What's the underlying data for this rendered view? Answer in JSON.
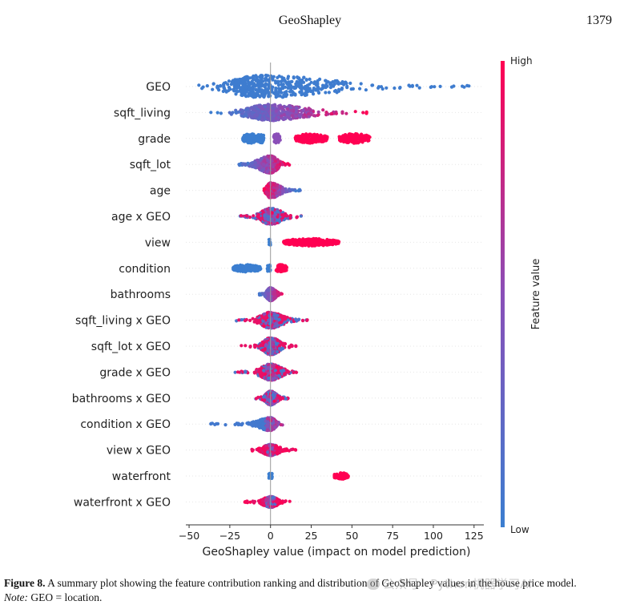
{
  "header": {
    "running_title": "GeoShapley",
    "page_number": "1379"
  },
  "chart_data": {
    "type": "scatter",
    "subtype": "beeswarm-summary",
    "xlabel": "GeoShapley value (impact on model prediction)",
    "xlim": [
      -52,
      131
    ],
    "xticks": [
      -50,
      -25,
      0,
      25,
      50,
      75,
      100,
      125
    ],
    "colorbar": {
      "label": "Feature value",
      "high_label": "High",
      "low_label": "Low",
      "low_color": "#3b7ed0",
      "high_color": "#ff0052"
    },
    "grid": false,
    "features": [
      {
        "name": "GEO",
        "min": -44,
        "max": 123,
        "center": -5,
        "left_spread": 28,
        "right_spread": 60,
        "width": 1.0,
        "color_mode": "blue"
      },
      {
        "name": "sqft_living",
        "min": -37,
        "max": 60,
        "center": 0,
        "left_spread": 20,
        "right_spread": 30,
        "width": 0.7,
        "color_mode": "gradient"
      },
      {
        "name": "grade",
        "clusters": [
          [
            -17,
            -8,
            "blue"
          ],
          [
            -8,
            -4,
            "blue"
          ],
          [
            2,
            6,
            "purple"
          ],
          [
            15,
            35,
            "red"
          ],
          [
            42,
            61,
            "red"
          ]
        ],
        "width": 0.45
      },
      {
        "name": "sqft_lot",
        "min": -20,
        "max": 12,
        "center": 0,
        "left_spread": 10,
        "right_spread": 6,
        "width": 0.75,
        "color_mode": "gradient"
      },
      {
        "name": "age",
        "min": -5,
        "max": 19,
        "center": 0,
        "left_spread": 3,
        "right_spread": 8,
        "width": 0.65,
        "color_mode": "gradient-rev"
      },
      {
        "name": "age x GEO",
        "min": -20,
        "max": 19,
        "center": 0,
        "left_spread": 8,
        "right_spread": 10,
        "width": 0.7,
        "color_mode": "mixed"
      },
      {
        "name": "view",
        "clusters": [
          [
            -1,
            0,
            "blue"
          ],
          [
            8,
            42,
            "red"
          ]
        ],
        "width": 0.35
      },
      {
        "name": "condition",
        "clusters": [
          [
            -23,
            -6,
            "blue"
          ],
          [
            -2,
            0,
            "blue"
          ],
          [
            3,
            10,
            "red"
          ]
        ],
        "width": 0.35
      },
      {
        "name": "bathrooms",
        "min": -7,
        "max": 7,
        "center": 0,
        "left_spread": 3,
        "right_spread": 4,
        "width": 0.55,
        "color_mode": "gradient"
      },
      {
        "name": "sqft_living x GEO",
        "min": -21,
        "max": 25,
        "center": 0,
        "left_spread": 8,
        "right_spread": 10,
        "width": 0.7,
        "color_mode": "mixed"
      },
      {
        "name": "sqft_lot x GEO",
        "min": -19,
        "max": 16,
        "center": 0,
        "left_spread": 6,
        "right_spread": 8,
        "width": 0.75,
        "color_mode": "mixed"
      },
      {
        "name": "grade x GEO",
        "min": -24,
        "max": 18,
        "center": 0,
        "left_spread": 8,
        "right_spread": 9,
        "width": 0.7,
        "color_mode": "mixed"
      },
      {
        "name": "bathrooms x GEO",
        "min": -9,
        "max": 12,
        "center": 0,
        "left_spread": 4,
        "right_spread": 5,
        "width": 0.6,
        "color_mode": "mixed"
      },
      {
        "name": "condition x GEO",
        "min": -37,
        "max": 8,
        "center": 0,
        "left_spread": 10,
        "right_spread": 4,
        "width": 0.55,
        "color_mode": "blue-left"
      },
      {
        "name": "view x GEO",
        "min": -12,
        "max": 16,
        "center": 0,
        "left_spread": 6,
        "right_spread": 7,
        "width": 0.45,
        "color_mode": "mixed-red"
      },
      {
        "name": "waterfront",
        "clusters": [
          [
            -1,
            1,
            "blue"
          ],
          [
            39,
            48,
            "red"
          ]
        ],
        "width": 0.3
      },
      {
        "name": "waterfront x GEO",
        "min": -16,
        "max": 13,
        "center": 0,
        "left_spread": 6,
        "right_spread": 6,
        "width": 0.45,
        "color_mode": "mixed-red"
      }
    ]
  },
  "caption": {
    "label": "Figure 8.",
    "text": " A summary plot showing the feature contribution ranking and distribution of GeoShapley values in the house price model.",
    "note_label": "Note:",
    "note_text": " GEO = location."
  },
  "watermark": {
    "text": "公众号 · Python机器学习AI"
  }
}
